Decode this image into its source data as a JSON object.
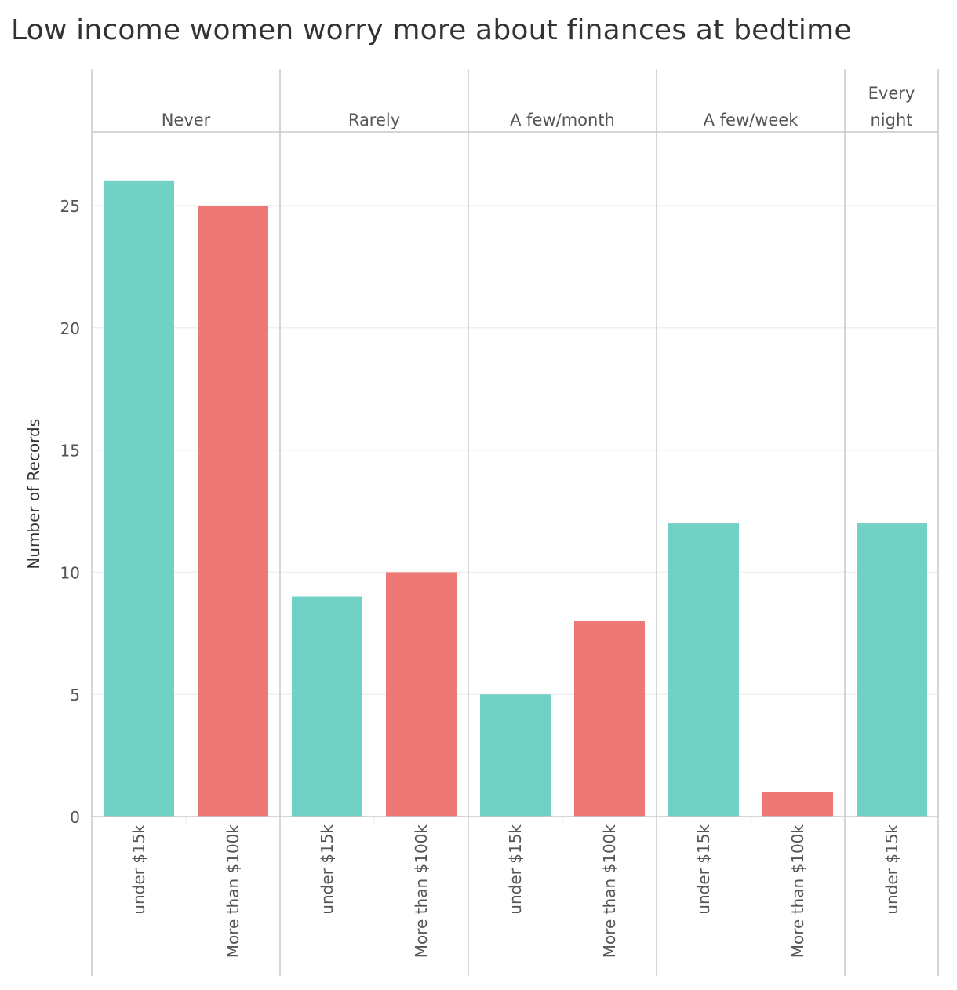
{
  "title": "Low income women worry more about finances at bedtime",
  "colors": {
    "under_15k": "#71D1C5",
    "more_100k": "#EE7875",
    "grid": "#EFEFEF",
    "divider": "#C8C8C8"
  },
  "chart_data": {
    "type": "bar",
    "title": "Low income women worry more about finances at bedtime",
    "ylabel": "Number of Records",
    "xlabel": "",
    "ylim": [
      0,
      28
    ],
    "yticks": [
      "0",
      "5",
      "10",
      "15",
      "20",
      "25"
    ],
    "grid": true,
    "panes": [
      {
        "header": [
          "Never"
        ],
        "bars": [
          {
            "category": "under $15k",
            "value": 26
          },
          {
            "category": "More than $100k",
            "value": 25
          }
        ]
      },
      {
        "header": [
          "Rarely"
        ],
        "bars": [
          {
            "category": "under $15k",
            "value": 9
          },
          {
            "category": "More than $100k",
            "value": 10
          }
        ]
      },
      {
        "header": [
          "A few/month"
        ],
        "bars": [
          {
            "category": "under $15k",
            "value": 5
          },
          {
            "category": "More than $100k",
            "value": 8
          }
        ]
      },
      {
        "header": [
          "A few/week"
        ],
        "bars": [
          {
            "category": "under $15k",
            "value": 12
          },
          {
            "category": "More than $100k",
            "value": 1
          }
        ]
      },
      {
        "header": [
          "Every",
          "night"
        ],
        "bars": [
          {
            "category": "under $15k",
            "value": 12
          }
        ]
      }
    ]
  }
}
